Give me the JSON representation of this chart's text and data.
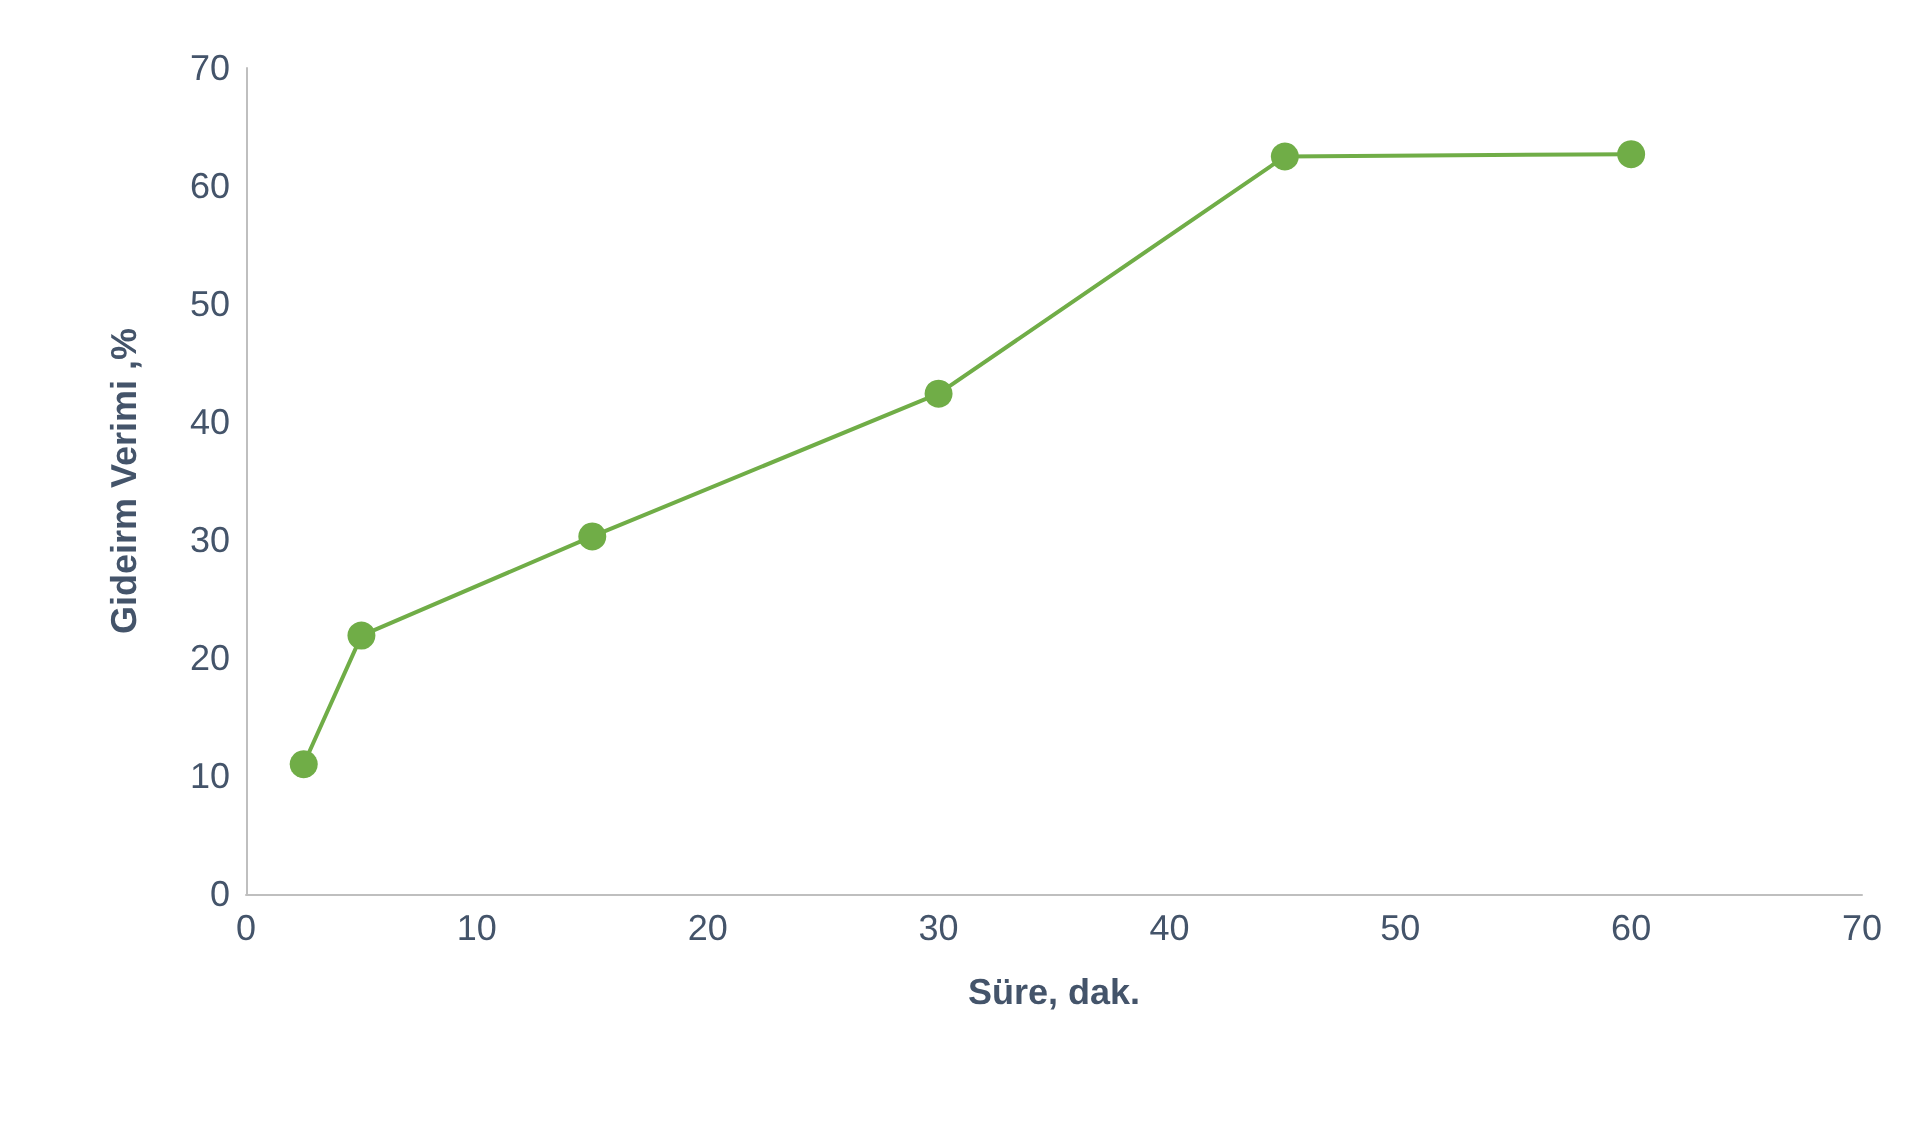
{
  "chart_data": {
    "type": "line",
    "xlabel": "Süre, dak.",
    "ylabel": "Gideirm Verimi ,%",
    "x": [
      2.5,
      5,
      15,
      30,
      45,
      60
    ],
    "series": [
      {
        "color": "#70ad47",
        "values": [
          11.0,
          21.9,
          30.3,
          42.4,
          62.5,
          62.7
        ]
      }
    ],
    "xlim": [
      0,
      70
    ],
    "xticks": [
      0,
      10,
      20,
      30,
      40,
      50,
      60,
      70
    ],
    "ylim": [
      0,
      70
    ],
    "yticks": [
      0,
      10,
      20,
      30,
      40,
      50,
      60,
      70
    ],
    "grid": false,
    "marker": "circle",
    "line_style": "solid"
  }
}
